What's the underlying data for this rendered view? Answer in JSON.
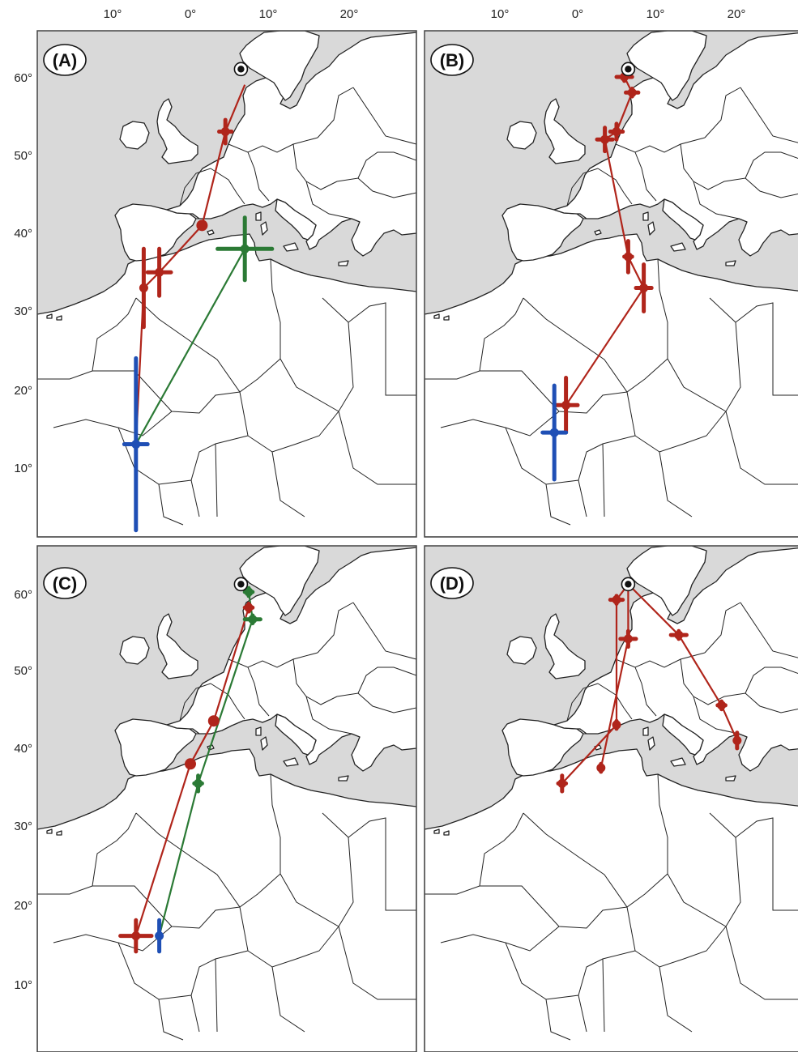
{
  "lon_labels": [
    "10°",
    "0°",
    "10°",
    "20°"
  ],
  "lat_labels": [
    "60°",
    "50°",
    "40°",
    "30°",
    "20°",
    "10°"
  ],
  "colors": {
    "red": "#b0251b",
    "green": "#2b7a35",
    "blue": "#1f4fb5",
    "sea": "#d9d9d9"
  },
  "icons": {
    "origin": "breeding-site-circle-icon",
    "error": "error-cross-icon"
  },
  "panels": [
    {
      "label": "(A)",
      "tracks": [
        {
          "color": "red",
          "points": [
            [
              7,
              59
            ],
            [
              4.5,
              53
            ],
            [
              1.5,
              41
            ],
            [
              -4,
              35
            ],
            [
              -6,
              33
            ],
            [
              -7,
              13
            ]
          ]
        },
        {
          "color": "green",
          "points": [
            [
              -7,
              13
            ],
            [
              7,
              38
            ]
          ]
        }
      ],
      "markers": [
        {
          "color": "red",
          "lon": 4.5,
          "lat": 53,
          "ex": 0.8,
          "ey": 1.5
        },
        {
          "color": "red",
          "lon": 1.5,
          "lat": 41,
          "ex": 0,
          "ey": 0
        },
        {
          "color": "red",
          "lon": -4,
          "lat": 35,
          "ex": 1.5,
          "ey": 3
        },
        {
          "color": "red",
          "lon": -6,
          "lat": 33,
          "ex": 0.3,
          "ey": 5
        },
        {
          "color": "green",
          "lon": 7,
          "lat": 38,
          "ex": 3.5,
          "ey": 4
        },
        {
          "color": "blue",
          "lon": -7,
          "lat": 13,
          "ex": 1.5,
          "ey": 11
        }
      ]
    },
    {
      "label": "(B)",
      "tracks": [
        {
          "color": "red",
          "points": [
            [
              6,
              60
            ],
            [
              7,
              58
            ],
            [
              5,
              53
            ],
            [
              3.5,
              52
            ],
            [
              6.5,
              37
            ],
            [
              8.5,
              33
            ],
            [
              -1.5,
              18
            ]
          ]
        }
      ],
      "markers": [
        {
          "color": "red",
          "lon": 6,
          "lat": 60,
          "ex": 1,
          "ey": 0.5
        },
        {
          "color": "red",
          "lon": 7,
          "lat": 58,
          "ex": 0.8,
          "ey": 0.5
        },
        {
          "color": "red",
          "lon": 5,
          "lat": 53,
          "ex": 0.8,
          "ey": 1
        },
        {
          "color": "red",
          "lon": 3.5,
          "lat": 52,
          "ex": 1,
          "ey": 1.5
        },
        {
          "color": "red",
          "lon": 6.5,
          "lat": 37,
          "ex": 0.5,
          "ey": 2
        },
        {
          "color": "red",
          "lon": 8.5,
          "lat": 33,
          "ex": 1,
          "ey": 3
        },
        {
          "color": "red",
          "lon": -1.5,
          "lat": 18,
          "ex": 1.5,
          "ey": 3.5
        },
        {
          "color": "blue",
          "lon": -3,
          "lat": 14.5,
          "ex": 1.5,
          "ey": 6
        }
      ]
    },
    {
      "label": "(C)",
      "tracks": [
        {
          "color": "red",
          "points": [
            [
              7.5,
              58
            ],
            [
              3,
              43.5
            ],
            [
              0,
              38
            ],
            [
              -7,
              16
            ]
          ]
        },
        {
          "color": "green",
          "points": [
            [
              7.5,
              60
            ],
            [
              8,
              56.5
            ],
            [
              1,
              35.5
            ],
            [
              -4,
              16
            ]
          ]
        }
      ],
      "markers": [
        {
          "color": "red",
          "lon": 7.5,
          "lat": 58,
          "ex": 0.5,
          "ey": 0.5
        },
        {
          "color": "red",
          "lon": 3,
          "lat": 43.5,
          "ex": 0,
          "ey": 0
        },
        {
          "color": "red",
          "lon": 0,
          "lat": 38,
          "ex": 0,
          "ey": 0
        },
        {
          "color": "red",
          "lon": -7,
          "lat": 16,
          "ex": 2,
          "ey": 2
        },
        {
          "color": "green",
          "lon": 7.5,
          "lat": 60,
          "ex": 0.5,
          "ey": 0.5
        },
        {
          "color": "green",
          "lon": 8,
          "lat": 56.5,
          "ex": 1,
          "ey": 0.5
        },
        {
          "color": "green",
          "lon": 1,
          "lat": 35.5,
          "ex": 0.5,
          "ey": 1
        },
        {
          "color": "blue",
          "lon": -4,
          "lat": 16,
          "ex": 0,
          "ey": 2
        }
      ]
    },
    {
      "label": "(D)",
      "tracks": [
        {
          "color": "red",
          "points": [
            [
              6.5,
              61
            ],
            [
              5,
              59
            ],
            [
              5,
              43
            ],
            [
              -2,
              35.5
            ]
          ]
        },
        {
          "color": "red",
          "points": [
            [
              6.5,
              61
            ],
            [
              6.5,
              54
            ],
            [
              3,
              37.5
            ]
          ]
        },
        {
          "color": "red",
          "points": [
            [
              6.5,
              61
            ],
            [
              13,
              54.5
            ],
            [
              18.5,
              45.5
            ],
            [
              20.5,
              41
            ]
          ]
        }
      ],
      "markers": [
        {
          "color": "red",
          "lon": 5,
          "lat": 59,
          "ex": 0.8,
          "ey": 0.5
        },
        {
          "color": "red",
          "lon": 6.5,
          "lat": 54,
          "ex": 1,
          "ey": 1
        },
        {
          "color": "red",
          "lon": 13,
          "lat": 54.5,
          "ex": 1,
          "ey": 0.5
        },
        {
          "color": "red",
          "lon": 5,
          "lat": 43,
          "ex": 0,
          "ey": 0.5
        },
        {
          "color": "red",
          "lon": 18.5,
          "lat": 45.5,
          "ex": 0.5,
          "ey": 0.5
        },
        {
          "color": "red",
          "lon": 20.5,
          "lat": 41,
          "ex": 0.3,
          "ey": 1
        },
        {
          "color": "red",
          "lon": -2,
          "lat": 35.5,
          "ex": 0.5,
          "ey": 1
        },
        {
          "color": "red",
          "lon": 3,
          "lat": 37.5,
          "ex": 0,
          "ey": 0.5
        }
      ]
    }
  ]
}
